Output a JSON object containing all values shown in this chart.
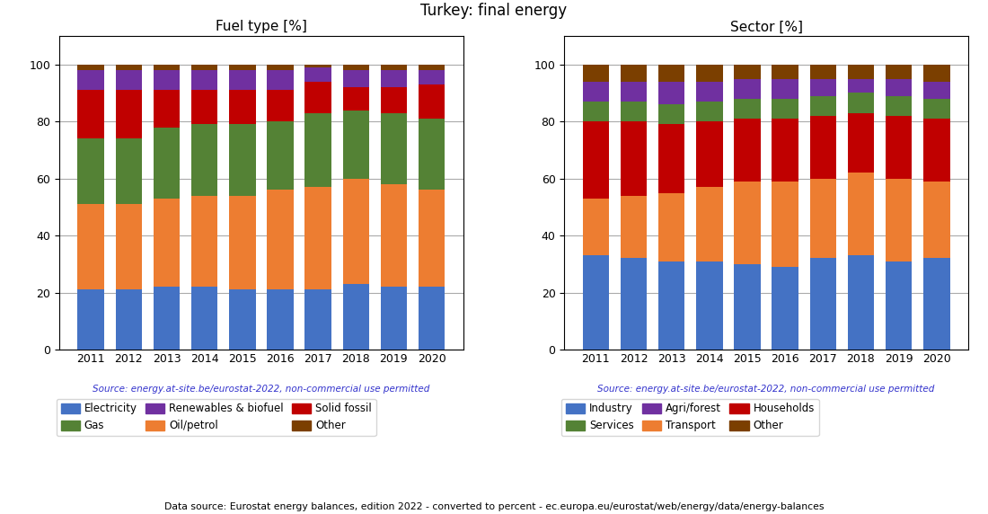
{
  "title": "Turkey: final energy",
  "years": [
    2011,
    2012,
    2013,
    2014,
    2015,
    2016,
    2017,
    2018,
    2019,
    2020
  ],
  "fuel_title": "Fuel type [%]",
  "sector_title": "Sector [%]",
  "source_text": "Source: energy.at-site.be/eurostat-2022, non-commercial use permitted",
  "bottom_text": "Data source: Eurostat energy balances, edition 2022 - converted to percent - ec.europa.eu/eurostat/web/energy/data/energy-balances",
  "fuel_data": {
    "Electricity": [
      21,
      21,
      22,
      22,
      21,
      21,
      21,
      23,
      22,
      22
    ],
    "Oil/petrol": [
      30,
      30,
      31,
      32,
      33,
      35,
      36,
      37,
      36,
      34
    ],
    "Gas": [
      23,
      23,
      25,
      25,
      25,
      24,
      26,
      24,
      25,
      25
    ],
    "Solid fossil": [
      17,
      17,
      13,
      12,
      12,
      11,
      11,
      8,
      9,
      12
    ],
    "Renewables & biofuel": [
      7,
      7,
      7,
      7,
      7,
      7,
      5,
      6,
      6,
      5
    ],
    "Other": [
      2,
      2,
      2,
      2,
      2,
      2,
      1,
      2,
      2,
      2
    ]
  },
  "fuel_colors": {
    "Electricity": "#4472c4",
    "Oil/petrol": "#ed7d31",
    "Gas": "#548235",
    "Solid fossil": "#c00000",
    "Renewables & biofuel": "#7030a0",
    "Other": "#7b3f00"
  },
  "fuel_legend_order": [
    "Electricity",
    "Gas",
    "Renewables & biofuel",
    "Oil/petrol",
    "Solid fossil",
    "Other"
  ],
  "sector_data": {
    "Industry": [
      33,
      32,
      31,
      31,
      30,
      29,
      32,
      33,
      31,
      32
    ],
    "Transport": [
      20,
      22,
      24,
      26,
      29,
      30,
      28,
      29,
      29,
      27
    ],
    "Households": [
      27,
      26,
      24,
      23,
      22,
      22,
      22,
      21,
      22,
      22
    ],
    "Services": [
      7,
      7,
      7,
      7,
      7,
      7,
      7,
      7,
      7,
      7
    ],
    "Agri/forest": [
      7,
      7,
      8,
      7,
      7,
      7,
      6,
      5,
      6,
      6
    ],
    "Other": [
      6,
      6,
      6,
      6,
      5,
      5,
      5,
      5,
      5,
      6
    ]
  },
  "sector_colors": {
    "Industry": "#4472c4",
    "Transport": "#ed7d31",
    "Households": "#c00000",
    "Services": "#548235",
    "Agri/forest": "#7030a0",
    "Other": "#7b3f00"
  },
  "sector_legend_order": [
    "Industry",
    "Services",
    "Agri/forest",
    "Transport",
    "Households",
    "Other"
  ]
}
